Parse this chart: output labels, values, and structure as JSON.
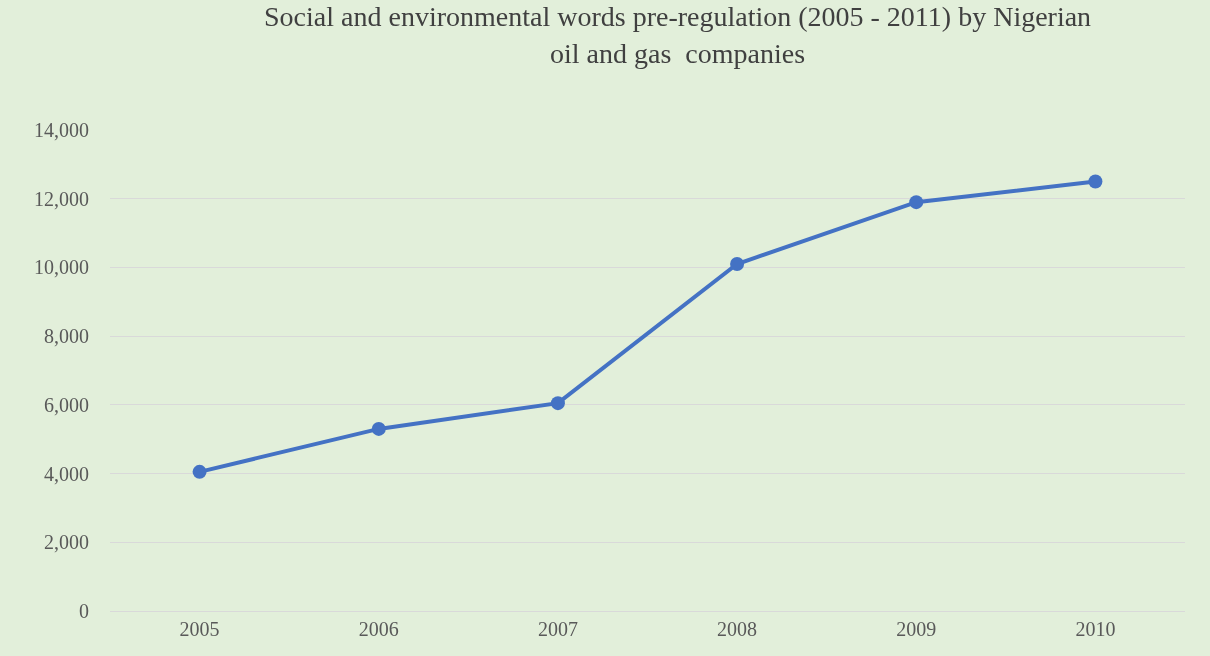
{
  "chart_data": {
    "type": "line",
    "title": "Social and environmental words pre-regulation (2005 - 2011) by Nigerian\noil and gas  companies",
    "categories": [
      "2005",
      "2006",
      "2007",
      "2008",
      "2009",
      "2010"
    ],
    "series": [
      {
        "color": "#4472c4",
        "values": [
          4050,
          5300,
          6050,
          10100,
          11900,
          12500
        ]
      }
    ],
    "ylim": [
      0,
      14000
    ],
    "yticks": [
      {
        "value": 0,
        "label": "0"
      },
      {
        "value": 2000,
        "label": "2,000"
      },
      {
        "value": 4000,
        "label": "4,000"
      },
      {
        "value": 6000,
        "label": "6,000"
      },
      {
        "value": 8000,
        "label": "8,000"
      },
      {
        "value": 10000,
        "label": "10,000"
      },
      {
        "value": 12000,
        "label": "12,000"
      },
      {
        "value": 14000,
        "label": "14,000"
      }
    ],
    "grid": "y",
    "marker": "circle",
    "line_style": "solid"
  }
}
